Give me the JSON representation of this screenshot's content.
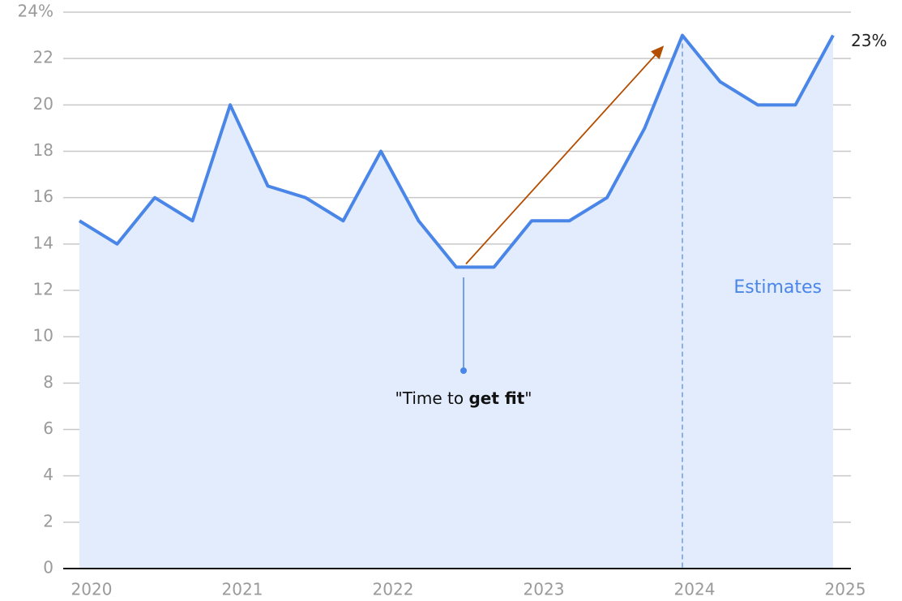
{
  "chart_data": {
    "type": "area",
    "x": [
      2020,
      2020.25,
      2020.5,
      2020.75,
      2021,
      2021.25,
      2021.5,
      2021.75,
      2022,
      2022.25,
      2022.5,
      2022.75,
      2023,
      2023.25,
      2023.5,
      2023.75,
      2024,
      2024.25,
      2024.5,
      2024.75,
      2025
    ],
    "values": [
      15,
      14,
      16,
      15,
      20,
      16.5,
      16,
      15,
      18,
      15,
      13,
      13,
      15,
      15,
      16,
      19,
      23,
      21,
      20,
      20,
      23
    ],
    "value_labels": [
      null,
      null,
      null,
      null,
      null,
      null,
      null,
      null,
      null,
      null,
      null,
      null,
      null,
      null,
      null,
      null,
      null,
      null,
      null,
      null,
      "23%"
    ],
    "color": "#4a86e8",
    "fill": "#e2ecfc",
    "xlim": [
      2020,
      2025
    ],
    "xticks": [
      2020,
      2021,
      2022,
      2023,
      2024,
      2025
    ],
    "ylim": [
      0,
      24
    ],
    "yticks": [
      0,
      2,
      4,
      6,
      8,
      10,
      12,
      14,
      16,
      18,
      20,
      22,
      {
        "value": 24,
        "label": "24%"
      }
    ],
    "grid": true,
    "annotation": {
      "parts": [
        "\"Time to ",
        "get fit",
        "\""
      ]
    },
    "region_label": "Estimates"
  }
}
